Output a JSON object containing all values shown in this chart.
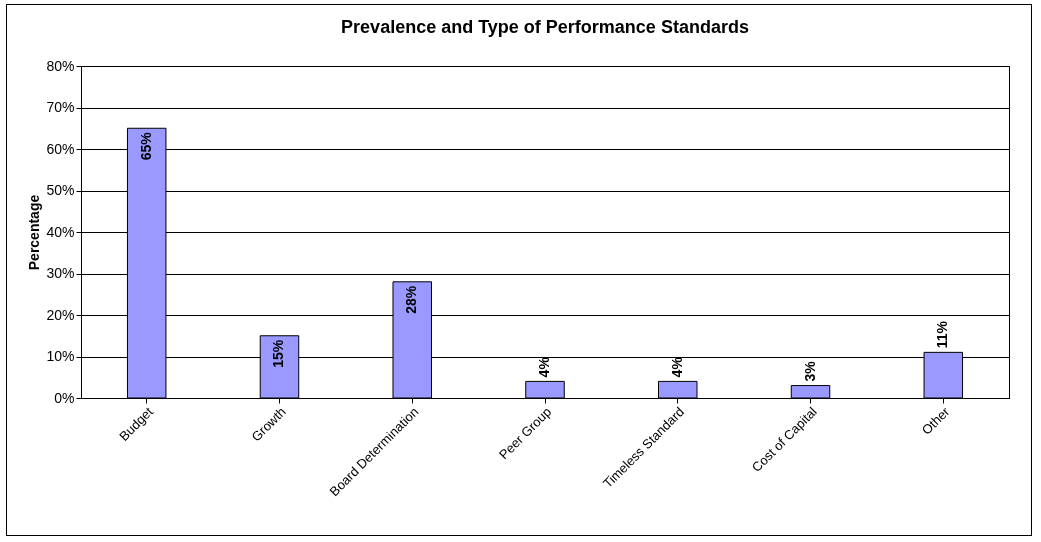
{
  "chart_data": {
    "type": "bar",
    "title": "Prevalence and Type of Performance Standards",
    "ylabel": "Percentage",
    "categories": [
      "Budget",
      "Growth",
      "Board Determination",
      "Peer Group",
      "Timeless Standard",
      "Cost of Capital",
      "Other"
    ],
    "values": [
      65,
      15,
      28,
      4,
      4,
      3,
      11
    ],
    "value_labels": [
      "65%",
      "15%",
      "28%",
      "4%",
      "4%",
      "3%",
      "11%"
    ],
    "color": "#9999ff",
    "ylim": [
      0,
      80
    ],
    "yticks": [
      {
        "value": 0,
        "label": "0%"
      },
      {
        "value": 10,
        "label": "10%"
      },
      {
        "value": 20,
        "label": "20%"
      },
      {
        "value": 30,
        "label": "30%"
      },
      {
        "value": 40,
        "label": "40%"
      },
      {
        "value": 50,
        "label": "50%"
      },
      {
        "value": 60,
        "label": "60%"
      },
      {
        "value": 70,
        "label": "70%"
      },
      {
        "value": 80,
        "label": "80%"
      }
    ],
    "grid": "y"
  }
}
